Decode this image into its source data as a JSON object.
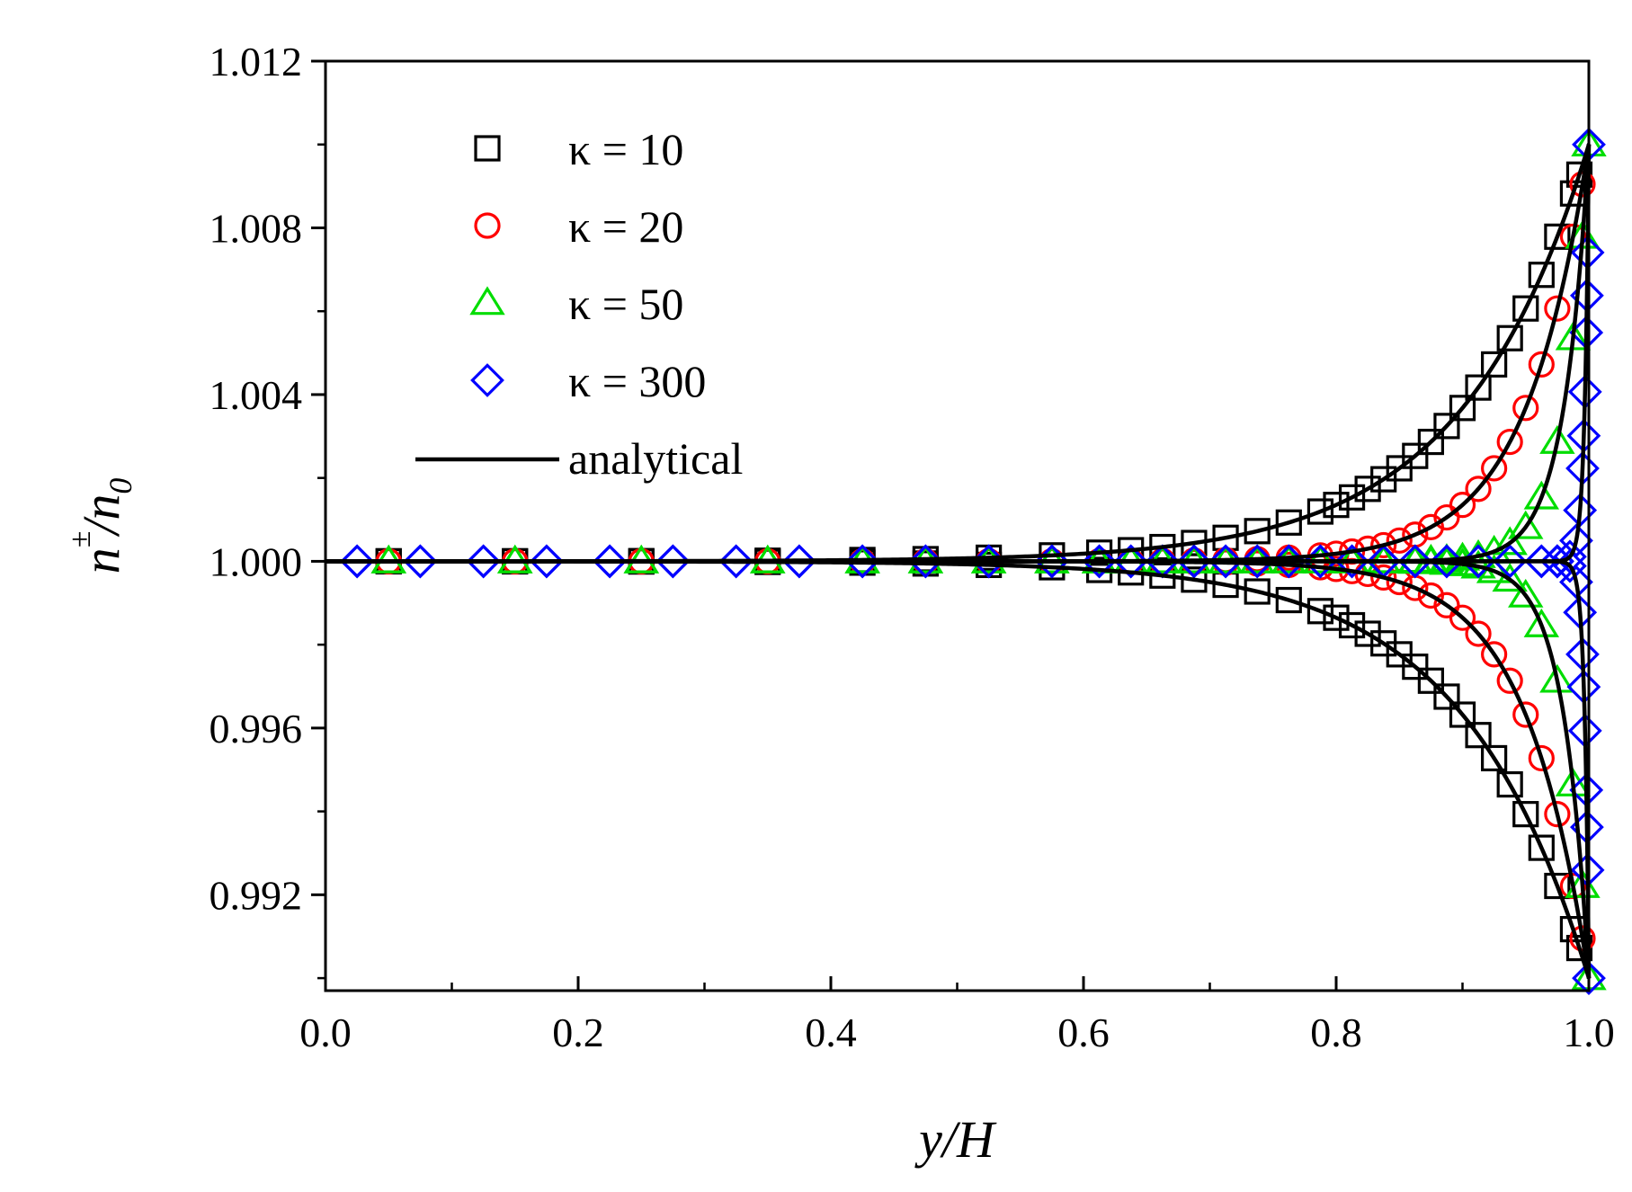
{
  "chart_data": {
    "type": "scatter",
    "title": "",
    "xlabel": "y/H",
    "ylabel": "n^± / n_0",
    "ylabel_parts": {
      "base": "n",
      "sup": "±",
      "sep": "/",
      "den": "n",
      "sub": "0"
    },
    "xlim": [
      0.0,
      1.0
    ],
    "ylim": [
      0.9897,
      1.012
    ],
    "x_ticks": [
      0.0,
      0.2,
      0.4,
      0.6,
      0.8,
      1.0
    ],
    "x_tick_labels": [
      "0.0",
      "0.2",
      "0.4",
      "0.6",
      "0.8",
      "1.0"
    ],
    "x_minor_ticks": [
      0.1,
      0.3,
      0.5,
      0.7,
      0.9
    ],
    "y_ticks": [
      0.992,
      0.996,
      1.0,
      1.004,
      1.008,
      1.012
    ],
    "y_tick_labels": [
      "0.992",
      "0.996",
      "1.000",
      "1.004",
      "1.008",
      "1.012"
    ],
    "y_minor_ticks": [
      0.99,
      0.994,
      0.998,
      1.002,
      1.006,
      1.01
    ],
    "grid": false,
    "legend_position": "top-left",
    "amplitude": 0.01,
    "series": [
      {
        "name": "κ = 10",
        "kappa": 10,
        "marker": "square",
        "color": "#000000",
        "x": [
          0.05,
          0.15,
          0.25,
          0.35,
          0.425,
          0.475,
          0.525,
          0.575,
          0.6125,
          0.6375,
          0.6625,
          0.6875,
          0.7125,
          0.7375,
          0.7625,
          0.7875,
          0.8,
          0.8125,
          0.825,
          0.8375,
          0.85,
          0.8625,
          0.875,
          0.8875,
          0.9,
          0.9125,
          0.925,
          0.9375,
          0.95,
          0.9625,
          0.975,
          0.9875,
          0.9925
        ]
      },
      {
        "name": "κ = 20",
        "kappa": 20,
        "marker": "circle",
        "color": "#ff0000",
        "x": [
          0.05,
          0.15,
          0.25,
          0.35,
          0.425,
          0.475,
          0.525,
          0.575,
          0.6125,
          0.6375,
          0.6625,
          0.6875,
          0.7125,
          0.7375,
          0.7625,
          0.7875,
          0.8,
          0.8125,
          0.825,
          0.8375,
          0.85,
          0.8625,
          0.875,
          0.8875,
          0.9,
          0.9125,
          0.925,
          0.9375,
          0.95,
          0.9625,
          0.975,
          0.9875,
          0.995
        ]
      },
      {
        "name": "κ = 50",
        "kappa": 50,
        "marker": "triangle",
        "color": "#00dd00",
        "x": [
          0.05,
          0.15,
          0.25,
          0.35,
          0.425,
          0.475,
          0.525,
          0.575,
          0.6125,
          0.6375,
          0.6625,
          0.6875,
          0.7125,
          0.7375,
          0.7625,
          0.7875,
          0.8125,
          0.8375,
          0.8625,
          0.875,
          0.8875,
          0.9,
          0.9125,
          0.925,
          0.9375,
          0.95,
          0.9625,
          0.975,
          0.9875,
          0.995,
          1.0
        ]
      },
      {
        "name": "κ = 300",
        "kappa": 300,
        "marker": "diamond",
        "color": "#0000ff",
        "x": [
          0.025,
          0.075,
          0.125,
          0.175,
          0.225,
          0.275,
          0.325,
          0.375,
          0.425,
          0.475,
          0.525,
          0.575,
          0.6125,
          0.6375,
          0.6625,
          0.6875,
          0.7125,
          0.7375,
          0.7625,
          0.7875,
          0.8125,
          0.8375,
          0.8625,
          0.8875,
          0.9125,
          0.9375,
          0.9625,
          0.975,
          0.985,
          0.99,
          0.993,
          0.995,
          0.996,
          0.997,
          0.998,
          0.9985,
          0.999,
          1.0
        ]
      },
      {
        "name": "analytical",
        "marker": "line",
        "color": "#000000",
        "kappas": [
          10,
          20,
          50,
          300
        ]
      }
    ],
    "legend": [
      {
        "label": "κ = 10",
        "marker": "square",
        "color": "#000000"
      },
      {
        "label": "κ = 20",
        "marker": "circle",
        "color": "#ff0000"
      },
      {
        "label": "κ = 50",
        "marker": "triangle",
        "color": "#00dd00"
      },
      {
        "label": "κ = 300",
        "marker": "diamond",
        "color": "#0000ff"
      },
      {
        "label": "analytical",
        "marker": "line",
        "color": "#000000"
      }
    ]
  }
}
